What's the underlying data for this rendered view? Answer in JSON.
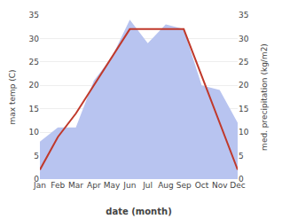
{
  "chart_data": {
    "type": "line",
    "categories": [
      "Jan",
      "Feb",
      "Mar",
      "Apr",
      "May",
      "Jun",
      "Jul",
      "Aug",
      "Sep",
      "Oct",
      "Nov",
      "Dec"
    ],
    "xlabel": "date (month)",
    "ylabel": "max temp (C)",
    "y2label": "med. precipitation (kg/m2)",
    "series": [
      {
        "type": "area",
        "color": "#b8c4f0",
        "axis": "y2",
        "values": [
          8,
          11,
          11,
          21,
          26,
          34,
          29,
          33,
          32,
          20,
          19,
          12
        ]
      },
      {
        "type": "line",
        "color": "#c0392b",
        "values": [
          2,
          9,
          14,
          20,
          26,
          32,
          32,
          32,
          32,
          22,
          12,
          2
        ]
      }
    ],
    "ylim": [
      0,
      35
    ],
    "yticks": [
      0,
      5,
      10,
      15,
      20,
      25,
      30,
      35
    ],
    "y2lim": [
      0,
      35
    ],
    "y2ticks": [
      0,
      5,
      10,
      15,
      20,
      25,
      30,
      35
    ],
    "grid": true
  }
}
